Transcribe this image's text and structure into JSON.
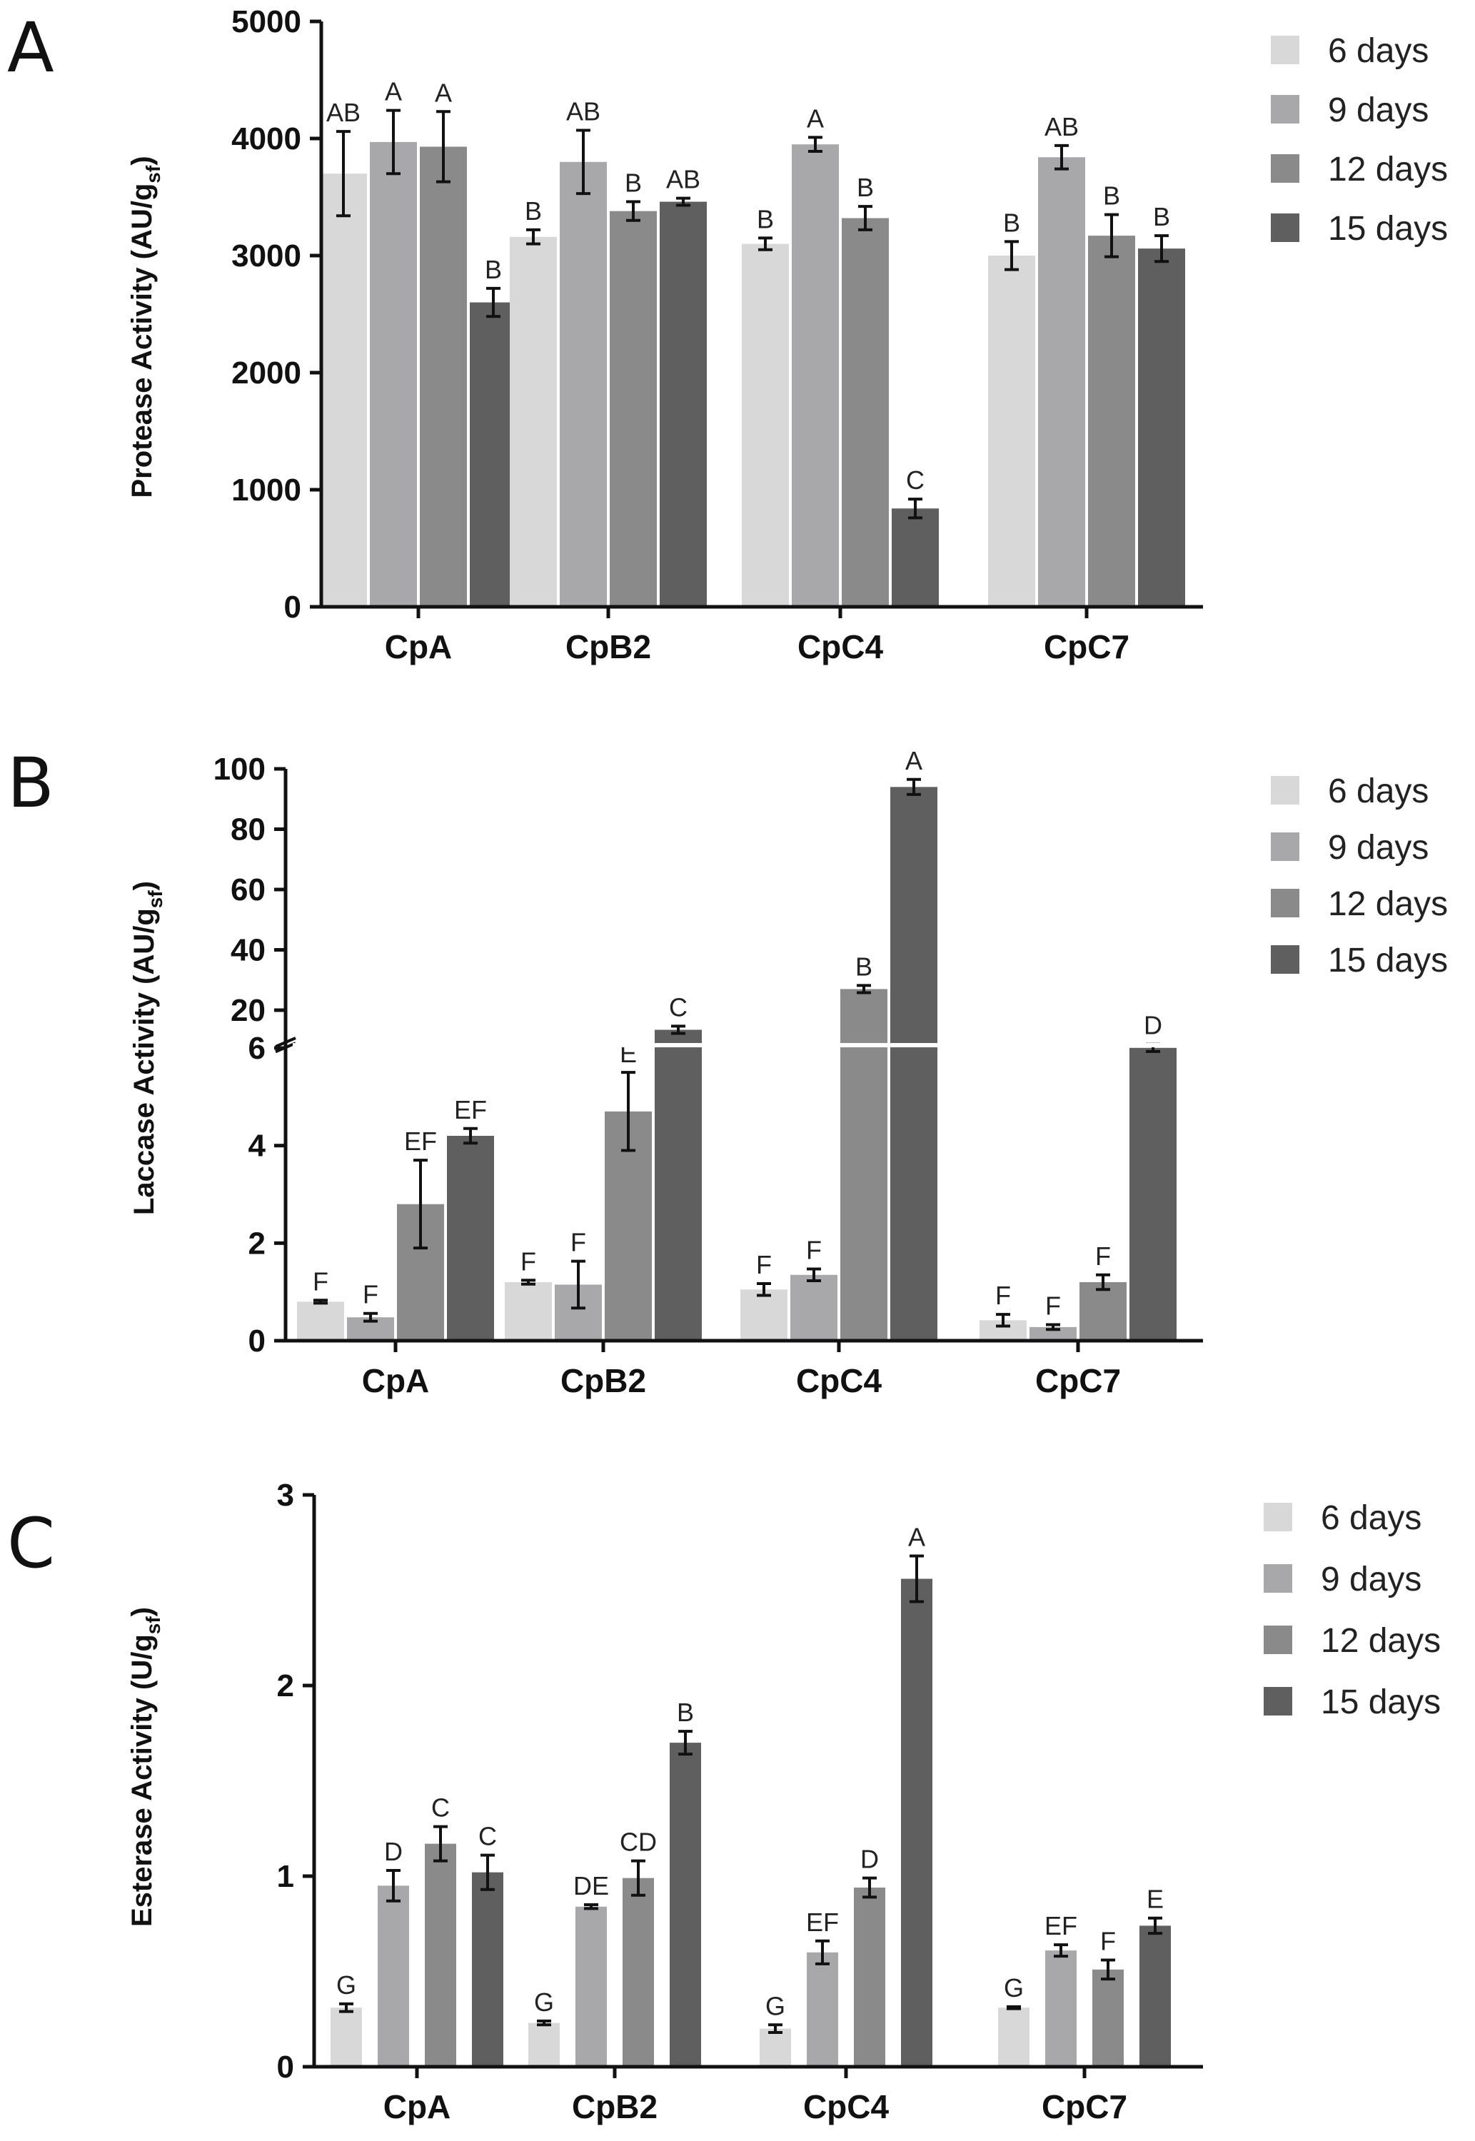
{
  "chart_data": [
    {
      "panel": "A",
      "type": "bar",
      "ylabel": "Protease Activity (AU/g",
      "ylabel_sub": "sf",
      "ylabel_close": ")",
      "ylim": [
        0,
        5000
      ],
      "yticks": [
        0,
        1000,
        2000,
        3000,
        4000,
        5000
      ],
      "categories": [
        "CpA",
        "CpB2",
        "CpC4",
        "CpC7"
      ],
      "series": [
        {
          "name": "6 days",
          "color": "#d8d8d8",
          "values": [
            3700,
            3160,
            3100,
            3000
          ],
          "errors": [
            360,
            60,
            50,
            120
          ],
          "labels": [
            "AB",
            "B",
            "B",
            "B"
          ]
        },
        {
          "name": "9 days",
          "color": "#a8a8aa",
          "values": [
            3970,
            3800,
            3950,
            3840
          ],
          "errors": [
            270,
            270,
            60,
            100
          ],
          "labels": [
            "A",
            "AB",
            "A",
            "AB"
          ]
        },
        {
          "name": "12 days",
          "color": "#8a8a8a",
          "values": [
            3930,
            3380,
            3320,
            3170
          ],
          "errors": [
            300,
            80,
            100,
            180
          ],
          "labels": [
            "A",
            "B",
            "B",
            "B"
          ]
        },
        {
          "name": "15 days",
          "color": "#5f5f5f",
          "values": [
            2600,
            3460,
            840,
            3060
          ],
          "errors": [
            120,
            30,
            80,
            110
          ],
          "labels": [
            "B",
            "AB",
            "C",
            "B"
          ]
        }
      ]
    },
    {
      "panel": "B",
      "type": "bar",
      "ylabel": "Laccase Activity (AU/g",
      "ylabel_sub": "sf",
      "ylabel_close": ")",
      "axis_break": [
        6,
        10
      ],
      "ylim_lower": [
        0,
        6
      ],
      "ylim_upper": [
        10,
        100
      ],
      "yticks_lower": [
        0,
        2,
        4,
        6
      ],
      "yticks_upper": [
        20,
        40,
        60,
        80,
        100
      ],
      "categories": [
        "CpA",
        "CpB2",
        "CpC4",
        "CpC7"
      ],
      "series": [
        {
          "name": "6 days",
          "color": "#d8d8d8",
          "values": [
            0.8,
            1.2,
            1.05,
            0.42
          ],
          "errors": [
            0.03,
            0.04,
            0.12,
            0.12
          ],
          "labels": [
            "F",
            "F",
            "F",
            "F"
          ]
        },
        {
          "name": "9 days",
          "color": "#a8a8aa",
          "values": [
            0.48,
            1.15,
            1.35,
            0.28
          ],
          "errors": [
            0.08,
            0.48,
            0.12,
            0.05
          ],
          "labels": [
            "F",
            "F",
            "F",
            "F"
          ]
        },
        {
          "name": "12 days",
          "color": "#8a8a8a",
          "values": [
            2.8,
            4.7,
            27,
            1.2
          ],
          "errors": [
            0.9,
            0.8,
            1.2,
            0.15
          ],
          "labels": [
            "EF",
            "E",
            "B",
            "F"
          ]
        },
        {
          "name": "15 days",
          "color": "#5f5f5f",
          "values": [
            4.2,
            13.5,
            94,
            7.5
          ],
          "errors": [
            0.15,
            1.2,
            2.5,
            1.2
          ],
          "labels": [
            "EF",
            "C",
            "A",
            "D"
          ]
        }
      ]
    },
    {
      "panel": "C",
      "type": "bar",
      "ylabel": "Esterase Activity (U/g",
      "ylabel_sub": "sf",
      "ylabel_close": ")",
      "ylim": [
        0,
        3
      ],
      "yticks": [
        0,
        1,
        2,
        3
      ],
      "categories": [
        "CpA",
        "CpB2",
        "CpC4",
        "CpC7"
      ],
      "series": [
        {
          "name": "6 days",
          "color": "#d8d8d8",
          "values": [
            0.31,
            0.23,
            0.2,
            0.31
          ],
          "errors": [
            0.02,
            0.01,
            0.02,
            0.005
          ],
          "labels": [
            "G",
            "G",
            "G",
            "G"
          ]
        },
        {
          "name": "9 days",
          "color": "#a8a8aa",
          "values": [
            0.95,
            0.84,
            0.6,
            0.61
          ],
          "errors": [
            0.08,
            0.01,
            0.06,
            0.03
          ],
          "labels": [
            "D",
            "DE",
            "EF",
            "EF"
          ]
        },
        {
          "name": "12 days",
          "color": "#8a8a8a",
          "values": [
            1.17,
            0.99,
            0.94,
            0.51
          ],
          "errors": [
            0.09,
            0.09,
            0.05,
            0.05
          ],
          "labels": [
            "C",
            "CD",
            "D",
            "F"
          ]
        },
        {
          "name": "15 days",
          "color": "#5f5f5f",
          "values": [
            1.02,
            1.7,
            2.56,
            0.74
          ],
          "errors": [
            0.09,
            0.06,
            0.12,
            0.04
          ],
          "labels": [
            "C",
            "B",
            "A",
            "E"
          ]
        }
      ]
    }
  ]
}
